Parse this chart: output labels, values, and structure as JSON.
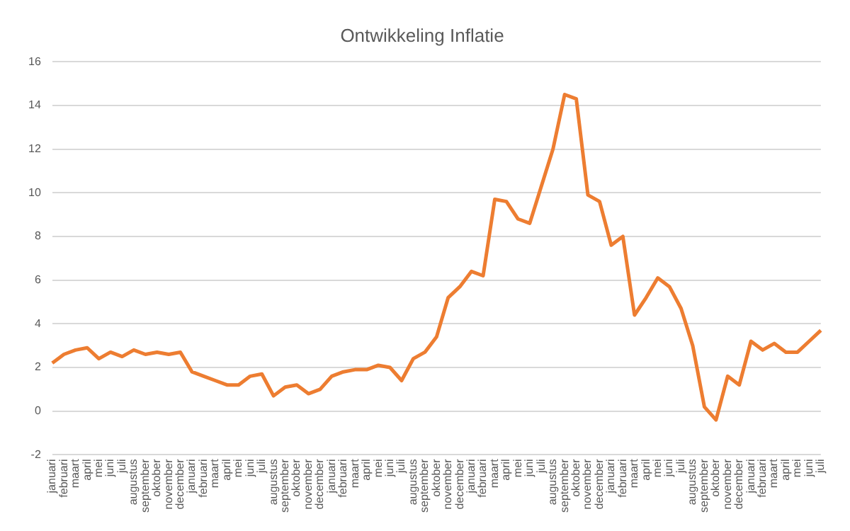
{
  "chart_data": {
    "type": "line",
    "title": "Ontwikkeling Inflatie",
    "categories": [
      "januari",
      "februari",
      "maart",
      "april",
      "mei",
      "juni",
      "juli",
      "augustus",
      "september",
      "oktober",
      "november",
      "december",
      "januari",
      "februari",
      "maart",
      "april",
      "mei",
      "juni",
      "juli",
      "augustus",
      "september",
      "oktober",
      "november",
      "december",
      "januari",
      "februari",
      "maart",
      "april",
      "mei",
      "juni",
      "juli",
      "augustus",
      "september",
      "oktober",
      "november",
      "december",
      "januari",
      "februari",
      "maart",
      "april",
      "mei",
      "juni",
      "juli",
      "augustus",
      "september",
      "oktober",
      "november",
      "december",
      "januari",
      "februari",
      "maart",
      "april",
      "mei",
      "juni",
      "juli",
      "augustus",
      "september",
      "oktober",
      "november",
      "december",
      "januari",
      "februari",
      "maart",
      "april",
      "mei",
      "juni",
      "juli"
    ],
    "series": [
      {
        "color": "#ed7d31",
        "values": [
          2.2,
          2.6,
          2.8,
          2.9,
          2.4,
          2.7,
          2.5,
          2.8,
          2.6,
          2.7,
          2.6,
          2.7,
          1.8,
          1.6,
          1.4,
          1.2,
          1.2,
          1.6,
          1.7,
          0.7,
          1.1,
          1.2,
          0.8,
          1.0,
          1.6,
          1.8,
          1.9,
          1.9,
          2.1,
          2.0,
          1.4,
          2.4,
          2.7,
          3.4,
          5.2,
          5.7,
          6.4,
          6.2,
          9.7,
          9.6,
          8.8,
          8.6,
          10.3,
          12.0,
          14.5,
          14.3,
          9.9,
          9.6,
          7.6,
          8.0,
          4.4,
          5.2,
          6.1,
          5.7,
          4.7,
          3.0,
          0.2,
          -0.4,
          1.6,
          1.2,
          3.2,
          2.8,
          3.1,
          2.7,
          2.7,
          3.2,
          3.7
        ]
      }
    ],
    "ylim": [
      -2,
      16
    ],
    "yticks": [
      -2,
      0,
      2,
      4,
      6,
      8,
      10,
      12,
      14,
      16
    ],
    "grid": "y",
    "legend": false,
    "marker": "none",
    "line_style": "solid"
  }
}
